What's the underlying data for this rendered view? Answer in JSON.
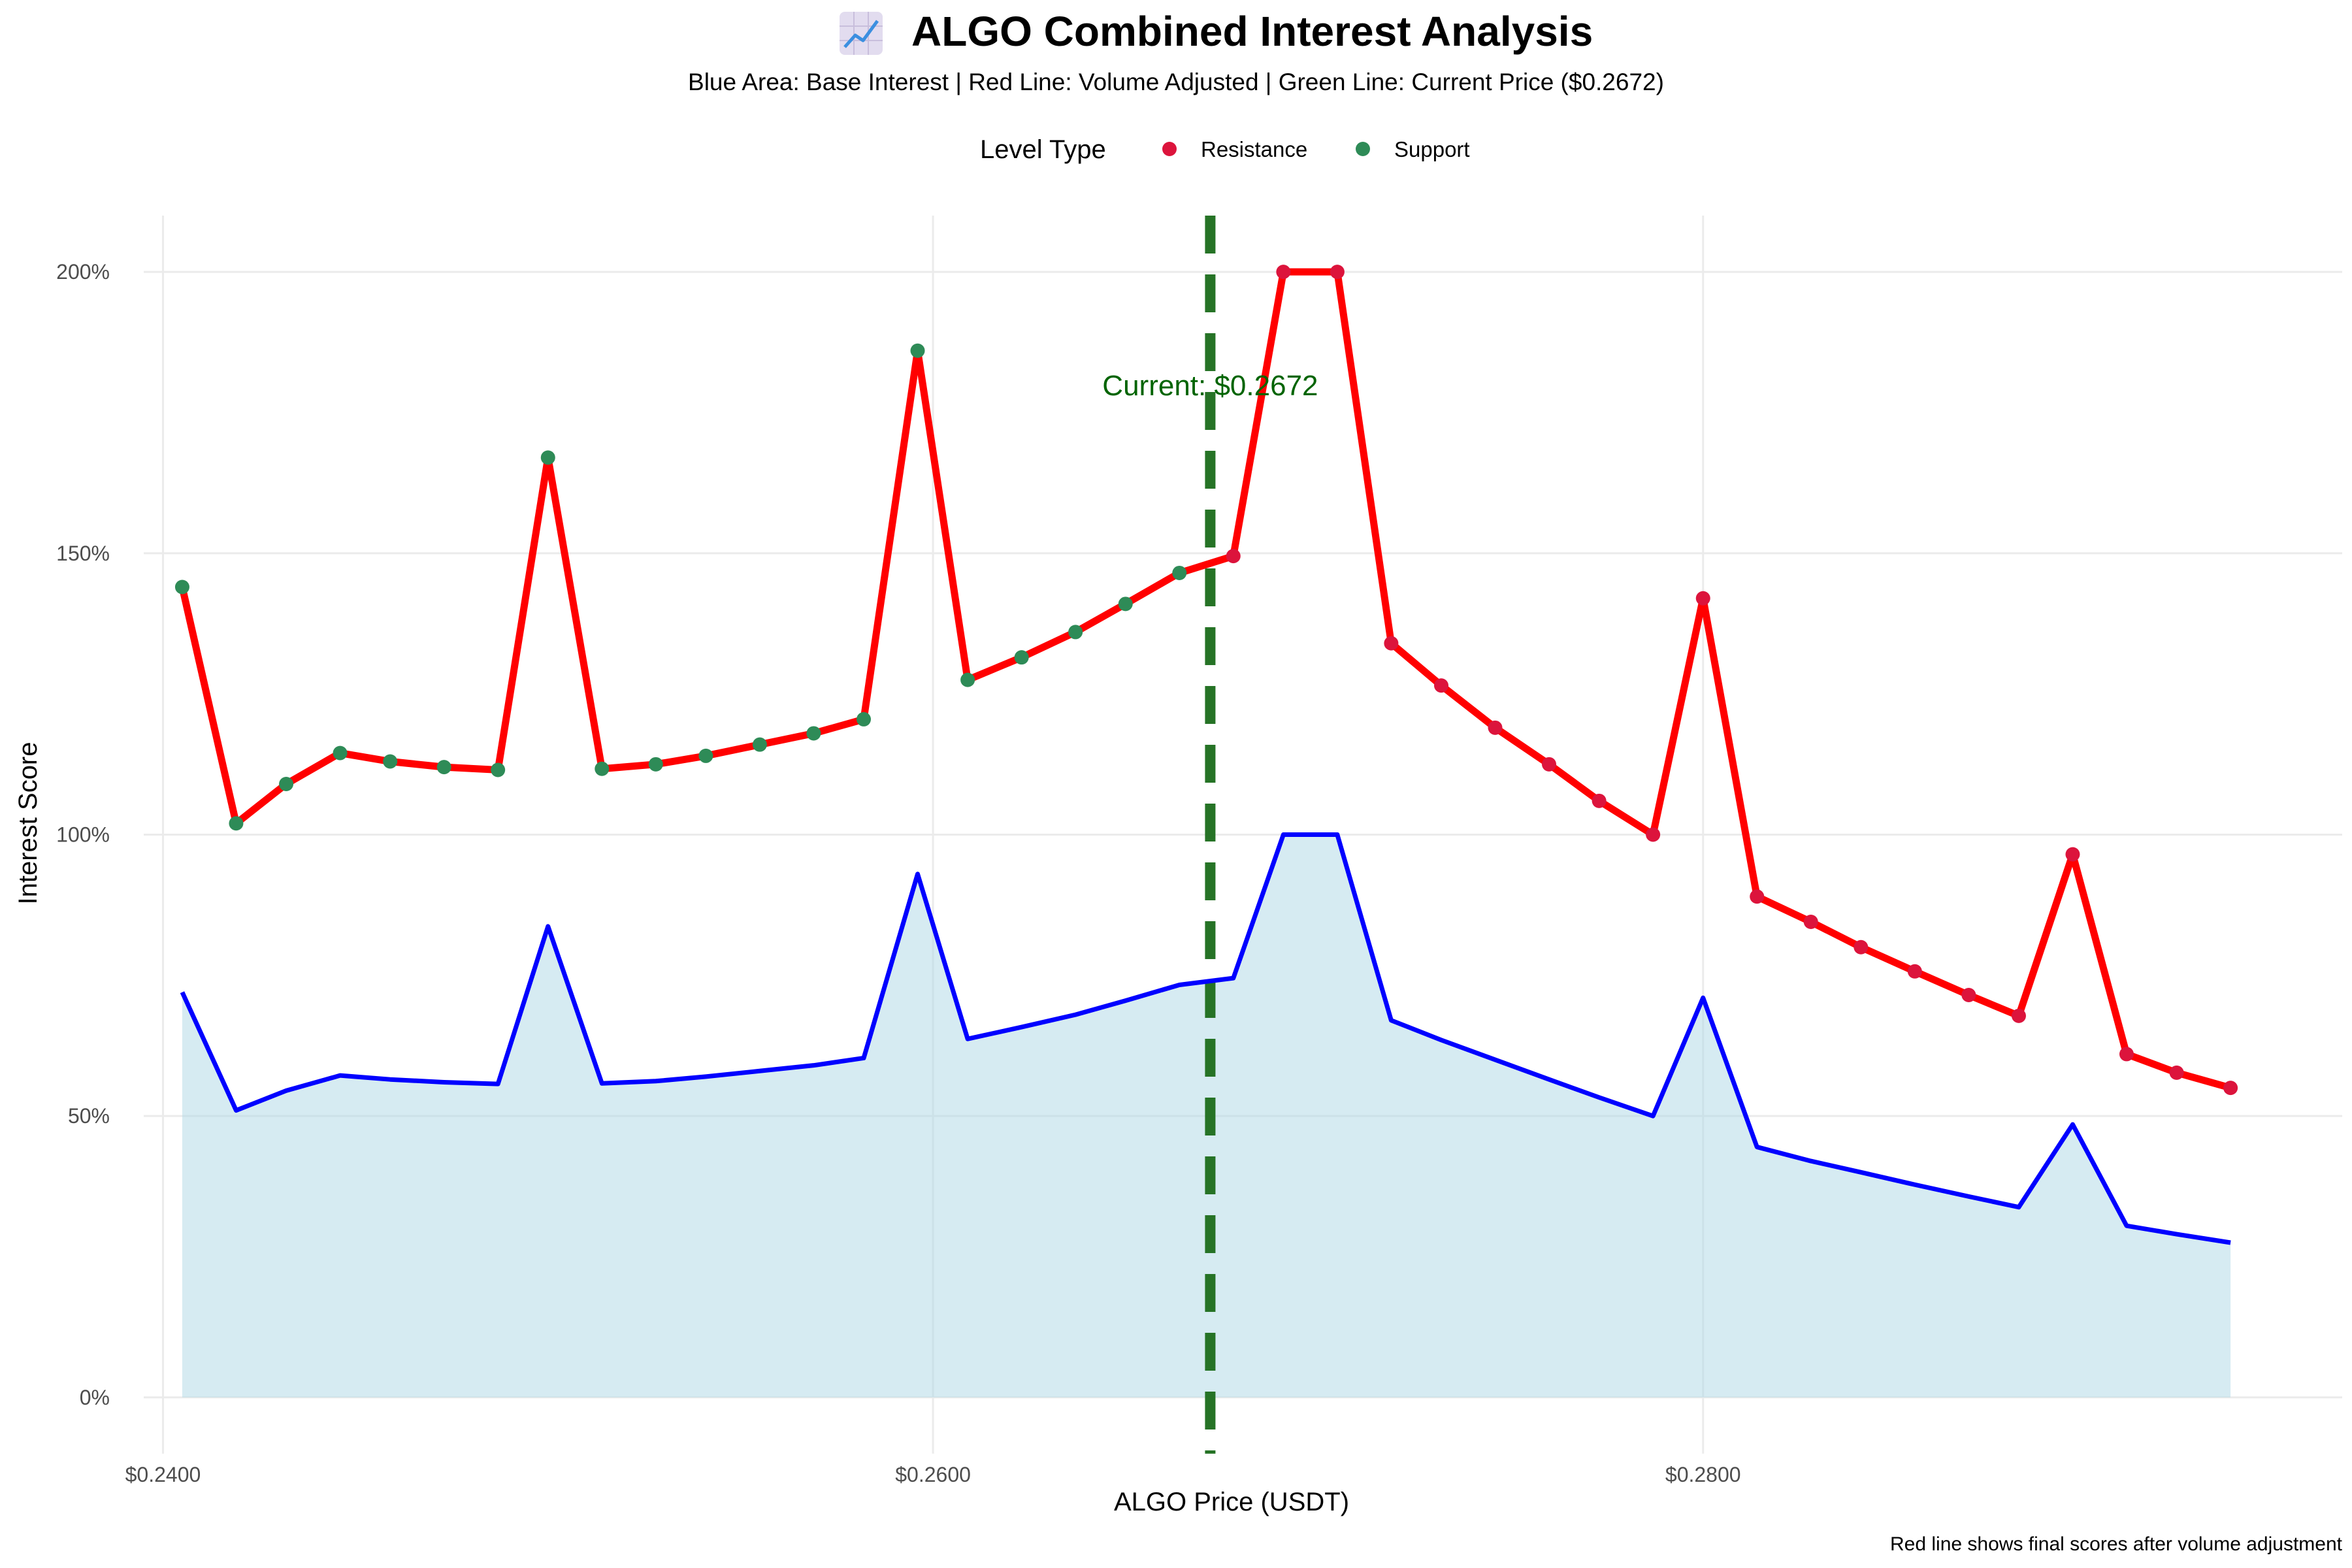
{
  "chart_data": {
    "type": "line",
    "title": "ALGO Combined Interest Analysis",
    "title_icon": "chart-increasing-icon",
    "subtitle": "Blue Area: Base Interest | Red Line: Volume Adjusted | Green Line: Current Price ($0.2672)",
    "xlabel": "ALGO Price (USDT)",
    "ylabel": "Interest Score",
    "caption": "Red line shows final scores after volume adjustment",
    "xlim": [
      0.2395,
      0.2966
    ],
    "ylim": [
      -0.1,
      2.1
    ],
    "x_ticks": [
      0.24,
      0.26,
      0.28
    ],
    "x_tick_labels": [
      "$0.2400",
      "$0.2600",
      "$0.2800"
    ],
    "y_ticks": [
      0,
      0.5,
      1.0,
      1.5,
      2.0
    ],
    "y_tick_labels": [
      "0%",
      "50%",
      "100%",
      "150%",
      "200%"
    ],
    "grid": true,
    "legend_position": "top",
    "legend": {
      "title": "Level Type",
      "entries": [
        {
          "label": "Resistance",
          "color": "#dc143c"
        },
        {
          "label": "Support",
          "color": "#2e8b57"
        }
      ]
    },
    "current_price": {
      "value": 0.2672,
      "label": "Current: $0.2672",
      "color": "#267326"
    },
    "x": [
      0.2405,
      0.2419,
      0.2432,
      0.2446,
      0.2459,
      0.2473,
      0.2487,
      0.25,
      0.2514,
      0.2528,
      0.2541,
      0.2555,
      0.2569,
      0.2582,
      0.2596,
      0.2609,
      0.2623,
      0.2637,
      0.265,
      0.2664,
      0.2678,
      0.2691,
      0.2705,
      0.2719,
      0.2732,
      0.2746,
      0.276,
      0.2773,
      0.2787,
      0.28,
      0.2814,
      0.2828,
      0.2841,
      0.2855,
      0.2869,
      0.2882,
      0.2896,
      0.291,
      0.2923,
      0.2937
    ],
    "series": [
      {
        "name": "Base Interest",
        "color": "#0000ff",
        "fill": "#add8e6",
        "values": [
          0.72,
          0.51,
          0.545,
          0.572,
          0.565,
          0.56,
          0.557,
          0.837,
          0.558,
          0.562,
          0.57,
          0.58,
          0.59,
          0.603,
          0.93,
          0.637,
          0.658,
          0.68,
          0.705,
          0.733,
          0.745,
          1.0,
          1.0,
          0.67,
          0.635,
          0.6,
          0.565,
          0.533,
          0.5,
          0.71,
          0.445,
          0.42,
          0.4,
          0.378,
          0.357,
          0.338,
          0.485,
          0.305,
          0.29,
          0.275
        ]
      },
      {
        "name": "Volume Adjusted",
        "color": "#ff0000",
        "values": [
          1.44,
          1.02,
          1.09,
          1.145,
          1.13,
          1.12,
          1.115,
          1.67,
          1.117,
          1.125,
          1.14,
          1.16,
          1.18,
          1.205,
          1.86,
          1.275,
          1.315,
          1.36,
          1.41,
          1.465,
          1.495,
          2.0,
          2.0,
          1.34,
          1.265,
          1.19,
          1.125,
          1.06,
          1.0,
          1.42,
          0.89,
          0.845,
          0.8,
          0.757,
          0.715,
          0.678,
          0.965,
          0.61,
          0.577,
          0.55
        ],
        "level_types": [
          "Support",
          "Support",
          "Support",
          "Support",
          "Support",
          "Support",
          "Support",
          "Support",
          "Support",
          "Support",
          "Support",
          "Support",
          "Support",
          "Support",
          "Support",
          "Support",
          "Support",
          "Support",
          "Support",
          "Support",
          "Resistance",
          "Resistance",
          "Resistance",
          "Resistance",
          "Resistance",
          "Resistance",
          "Resistance",
          "Resistance",
          "Resistance",
          "Resistance",
          "Resistance",
          "Resistance",
          "Resistance",
          "Resistance",
          "Resistance",
          "Resistance",
          "Resistance",
          "Resistance",
          "Resistance",
          "Resistance"
        ]
      }
    ]
  }
}
